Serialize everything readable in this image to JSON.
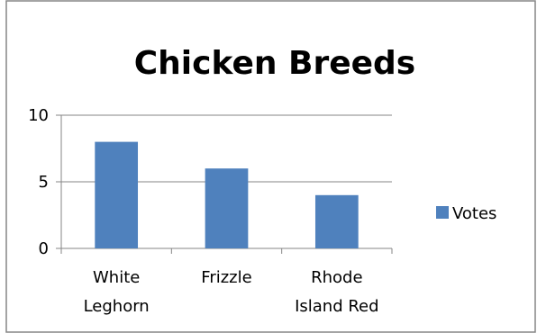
{
  "chart_data": {
    "type": "bar",
    "title": "Chicken Breeds",
    "categories": [
      [
        "White",
        "Leghorn"
      ],
      [
        "Frizzle"
      ],
      [
        "Rhode",
        "Island Red"
      ]
    ],
    "series": [
      {
        "name": "Votes",
        "values": [
          8,
          6,
          4
        ]
      }
    ],
    "ylim": [
      0,
      10
    ],
    "yticks": [
      0,
      5,
      10
    ],
    "grid": true,
    "legend": "right"
  },
  "colors": {
    "bar": "#4f81bd",
    "bar_border": "#3d6fa8",
    "grid": "#868686",
    "axis": "#868686",
    "frame": "#868686"
  }
}
